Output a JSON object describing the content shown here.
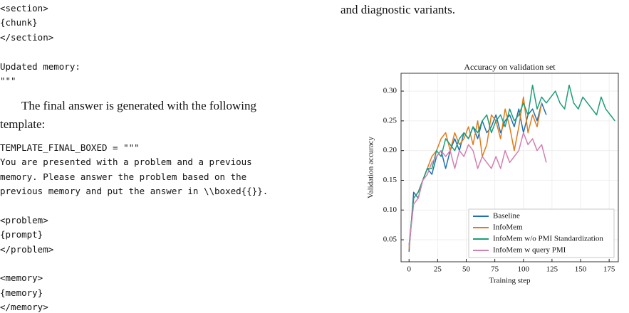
{
  "code_blocks": [
    [
      "<section>",
      "{chunk}",
      "</section>"
    ],
    [
      "Updated memory:",
      "\"\"\""
    ],
    [
      "TEMPLATE_FINAL_BOXED = \"\"\"",
      "You are presented with a problem and a previous",
      "memory. Please answer the problem based on the",
      "previous memory and put the answer in \\\\boxed{{}}."
    ],
    [
      "<problem>",
      "{prompt}",
      "</problem>"
    ],
    [
      "<memory>",
      "{memory}",
      "</memory>"
    ]
  ],
  "paragraph": [
    "The final answer is generated with the following",
    "template:"
  ],
  "right_text": "and diagnostic variants.",
  "chart_data": {
    "type": "line",
    "title": "Accuracy on validation set",
    "x_label": "Training step",
    "y_label": "Validation accuracy",
    "xlim": [
      -7,
      183
    ],
    "ylim": [
      0.013,
      0.33
    ],
    "xticks": [
      0,
      25,
      50,
      75,
      100,
      125,
      150,
      175
    ],
    "yticks": [
      0.05,
      {
        "value": 0.1,
        "label": "0.10"
      },
      0.15,
      {
        "value": 0.2,
        "label": "0.20"
      },
      0.25,
      {
        "value": 0.3,
        "label": "0.30"
      }
    ],
    "grid": true,
    "legend": "lower right",
    "series": [
      {
        "name": "Baseline",
        "color": "#1f6fb4",
        "x": [
          0,
          4,
          8,
          12,
          16,
          20,
          24,
          28,
          32,
          36,
          40,
          44,
          48,
          52,
          56,
          60,
          64,
          68,
          72,
          76,
          80,
          84,
          88,
          92,
          96,
          100,
          104,
          108,
          112,
          116,
          120
        ],
        "values": [
          0.03,
          0.13,
          0.12,
          0.15,
          0.17,
          0.16,
          0.19,
          0.2,
          0.17,
          0.2,
          0.22,
          0.2,
          0.23,
          0.22,
          0.24,
          0.22,
          0.25,
          0.23,
          0.24,
          0.26,
          0.23,
          0.25,
          0.26,
          0.24,
          0.27,
          0.23,
          0.26,
          0.27,
          0.25,
          0.28,
          0.26
        ]
      },
      {
        "name": "InfoMem",
        "color": "#e07b1a",
        "x": [
          0,
          4,
          8,
          12,
          16,
          20,
          24,
          28,
          32,
          36,
          40,
          44,
          48,
          52,
          56,
          60,
          64,
          68,
          72,
          76,
          80,
          84,
          88,
          92,
          96,
          100,
          104,
          108,
          112,
          116
        ],
        "values": [
          0.035,
          0.12,
          0.13,
          0.15,
          0.17,
          0.19,
          0.2,
          0.22,
          0.23,
          0.2,
          0.23,
          0.21,
          0.22,
          0.24,
          0.21,
          0.25,
          0.19,
          0.21,
          0.26,
          0.25,
          0.22,
          0.27,
          0.24,
          0.2,
          0.24,
          0.29,
          0.23,
          0.26,
          0.24,
          0.28
        ]
      },
      {
        "name": "InfoMem w/o PMI Standardization",
        "color": "#1a9e77",
        "x": [
          0,
          4,
          8,
          12,
          16,
          20,
          24,
          28,
          32,
          36,
          40,
          44,
          48,
          52,
          56,
          60,
          64,
          68,
          72,
          76,
          80,
          84,
          88,
          92,
          96,
          100,
          104,
          108,
          112,
          116,
          120,
          124,
          128,
          132,
          136,
          140,
          144,
          148,
          152,
          156,
          160,
          164,
          168,
          172,
          176,
          180
        ],
        "values": [
          0.04,
          0.12,
          0.13,
          0.15,
          0.17,
          0.17,
          0.2,
          0.19,
          0.22,
          0.21,
          0.2,
          0.22,
          0.23,
          0.22,
          0.24,
          0.23,
          0.25,
          0.26,
          0.23,
          0.25,
          0.26,
          0.24,
          0.27,
          0.25,
          0.26,
          0.28,
          0.26,
          0.31,
          0.27,
          0.29,
          0.28,
          0.29,
          0.3,
          0.28,
          0.27,
          0.31,
          0.28,
          0.27,
          0.29,
          0.28,
          0.27,
          0.26,
          0.29,
          0.27,
          0.26,
          0.25
        ]
      },
      {
        "name": "InfoMem w query PMI",
        "color": "#d37fb0",
        "x": [
          0,
          4,
          8,
          12,
          16,
          20,
          24,
          28,
          32,
          36,
          40,
          44,
          48,
          52,
          56,
          60,
          64,
          68,
          72,
          76,
          80,
          84,
          88,
          92,
          96,
          100,
          104,
          108,
          112,
          116,
          120
        ],
        "values": [
          0.04,
          0.11,
          0.12,
          0.15,
          0.16,
          0.18,
          0.19,
          0.2,
          0.19,
          0.2,
          0.17,
          0.2,
          0.19,
          0.21,
          0.2,
          0.17,
          0.19,
          0.18,
          0.17,
          0.19,
          0.17,
          0.2,
          0.18,
          0.19,
          0.2,
          0.23,
          0.21,
          0.22,
          0.2,
          0.21,
          0.18
        ]
      }
    ]
  }
}
